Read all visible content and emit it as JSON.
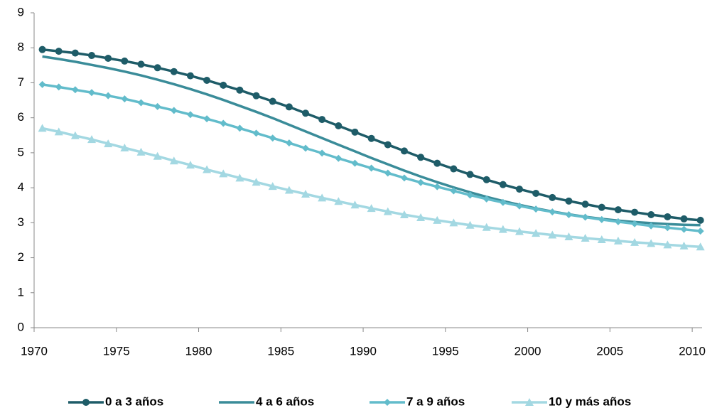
{
  "chart_data": {
    "type": "line",
    "x": [
      1970.5,
      1971.5,
      1972.5,
      1973.5,
      1974.5,
      1975.5,
      1976.5,
      1977.5,
      1978.5,
      1979.5,
      1980.5,
      1981.5,
      1982.5,
      1983.5,
      1984.5,
      1985.5,
      1986.5,
      1987.5,
      1988.5,
      1989.5,
      1990.5,
      1991.5,
      1992.5,
      1993.5,
      1994.5,
      1995.5,
      1996.5,
      1997.5,
      1998.5,
      1999.5,
      2000.5,
      2001.5,
      2002.5,
      2003.5,
      2004.5,
      2005.5,
      2006.5,
      2007.5,
      2008.5,
      2009.5,
      2010.5
    ],
    "series": [
      {
        "name": "0 a 3 años",
        "color": "#1e5c68",
        "marker": "circle",
        "values": [
          7.95,
          7.9,
          7.85,
          7.78,
          7.7,
          7.62,
          7.53,
          7.43,
          7.32,
          7.2,
          7.07,
          6.93,
          6.79,
          6.63,
          6.47,
          6.31,
          6.13,
          5.95,
          5.77,
          5.59,
          5.41,
          5.23,
          5.05,
          4.87,
          4.7,
          4.54,
          4.38,
          4.23,
          4.09,
          3.96,
          3.84,
          3.72,
          3.62,
          3.53,
          3.44,
          3.37,
          3.3,
          3.23,
          3.17,
          3.11,
          3.07
        ]
      },
      {
        "name": "4 a 6 años",
        "color": "#3a8c99",
        "marker": "none",
        "values": [
          7.75,
          7.68,
          7.6,
          7.51,
          7.42,
          7.32,
          7.21,
          7.09,
          6.96,
          6.82,
          6.67,
          6.51,
          6.34,
          6.17,
          5.99,
          5.8,
          5.61,
          5.42,
          5.23,
          5.04,
          4.85,
          4.67,
          4.49,
          4.32,
          4.16,
          4.01,
          3.87,
          3.74,
          3.62,
          3.51,
          3.41,
          3.32,
          3.24,
          3.17,
          3.11,
          3.06,
          3.02,
          2.99,
          2.96,
          2.94,
          2.93
        ]
      },
      {
        "name": "7 a 9 años",
        "color": "#62bccb",
        "marker": "diamond",
        "values": [
          6.95,
          6.88,
          6.8,
          6.72,
          6.63,
          6.54,
          6.43,
          6.32,
          6.21,
          6.09,
          5.97,
          5.84,
          5.7,
          5.56,
          5.42,
          5.28,
          5.13,
          4.99,
          4.84,
          4.7,
          4.56,
          4.42,
          4.28,
          4.15,
          4.03,
          3.91,
          3.79,
          3.68,
          3.58,
          3.48,
          3.39,
          3.31,
          3.23,
          3.16,
          3.09,
          3.03,
          2.97,
          2.91,
          2.86,
          2.81,
          2.76
        ]
      },
      {
        "name": "10 y más años",
        "color": "#a3d8e2",
        "marker": "triangle",
        "values": [
          5.7,
          5.6,
          5.49,
          5.38,
          5.26,
          5.14,
          5.02,
          4.9,
          4.77,
          4.65,
          4.52,
          4.4,
          4.28,
          4.16,
          4.04,
          3.93,
          3.82,
          3.71,
          3.61,
          3.51,
          3.41,
          3.32,
          3.23,
          3.15,
          3.07,
          3.0,
          2.93,
          2.87,
          2.81,
          2.75,
          2.7,
          2.65,
          2.6,
          2.56,
          2.52,
          2.48,
          2.44,
          2.41,
          2.37,
          2.34,
          2.31
        ]
      }
    ],
    "xlim": [
      1970,
      2010.6
    ],
    "xticks": [
      1970,
      1975,
      1980,
      1985,
      1990,
      1995,
      2000,
      2005,
      2010
    ],
    "ylim": [
      0,
      9
    ],
    "yticks": [
      0,
      1,
      2,
      3,
      4,
      5,
      6,
      7,
      8,
      9
    ],
    "grid": false,
    "legend": "bottom"
  }
}
